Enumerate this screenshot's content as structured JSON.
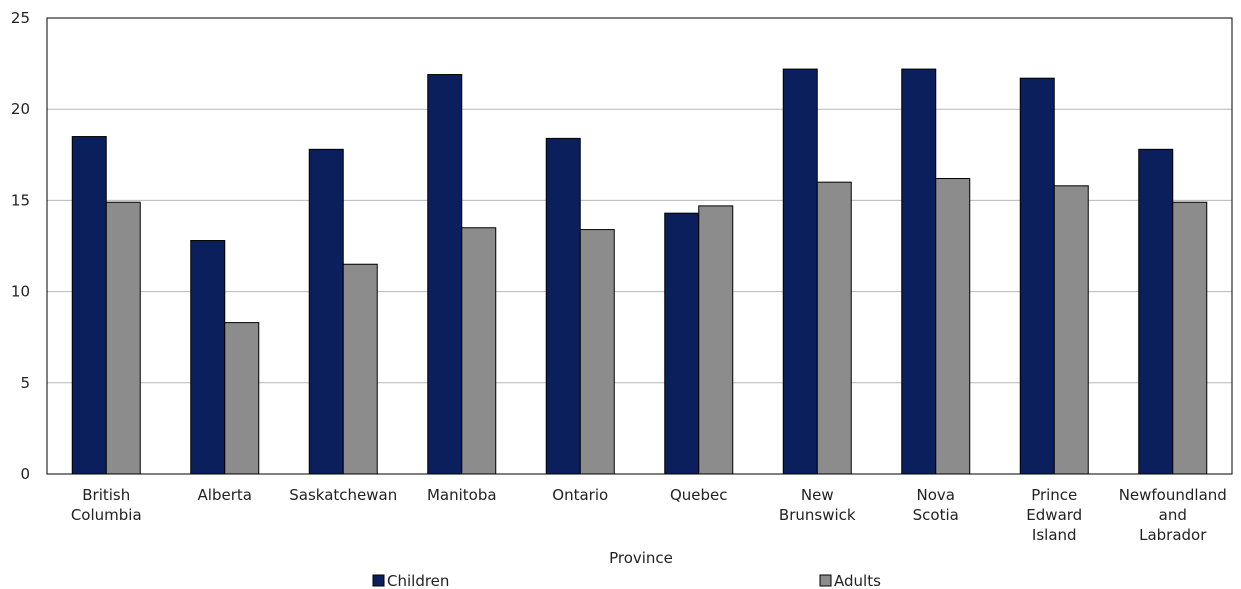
{
  "chart_data": {
    "type": "bar",
    "title": "",
    "xlabel": "Province",
    "ylabel": "",
    "ylim": [
      0,
      25
    ],
    "yticks": [
      0,
      5,
      10,
      15,
      20,
      25
    ],
    "grid": true,
    "legend_position": "bottom",
    "categories": [
      [
        "British",
        "Columbia"
      ],
      [
        "Alberta"
      ],
      [
        "Saskatchewan"
      ],
      [
        "Manitoba"
      ],
      [
        "Ontario"
      ],
      [
        "Quebec"
      ],
      [
        "New",
        "Brunswick"
      ],
      [
        "Nova",
        "Scotia"
      ],
      [
        "Prince",
        "Edward",
        "Island"
      ],
      [
        "Newfoundland",
        "and",
        "Labrador"
      ]
    ],
    "series": [
      {
        "name": "Children",
        "color": "#0a1f5c",
        "values": [
          18.5,
          12.8,
          17.8,
          21.9,
          18.4,
          14.3,
          22.2,
          22.2,
          21.7,
          17.8
        ]
      },
      {
        "name": "Adults",
        "color": "#8c8c8c",
        "values": [
          14.9,
          8.3,
          11.5,
          13.5,
          13.4,
          14.7,
          16.0,
          16.2,
          15.8,
          14.9
        ]
      }
    ]
  }
}
